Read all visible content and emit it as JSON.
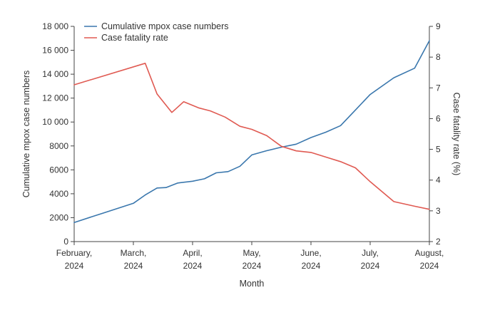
{
  "chart_data": {
    "type": "line",
    "xlabel": "Month",
    "ylabel_left": "Cumulative mpox case numbers",
    "ylabel_right": "Case fatality rate (%)",
    "ylim_left": [
      0,
      18000
    ],
    "ylim_right": [
      2,
      9
    ],
    "left_ticks": [
      "0",
      "2000",
      "4000",
      "6000",
      "8000",
      "10 000",
      "12 000",
      "14 000",
      "16 000",
      "18 000"
    ],
    "right_ticks": [
      "2",
      "3",
      "4",
      "5",
      "6",
      "7",
      "8",
      "9"
    ],
    "x_ticks": [
      {
        "line1": "February,",
        "line2": "2024"
      },
      {
        "line1": "March,",
        "line2": "2024"
      },
      {
        "line1": "April,",
        "line2": "2024"
      },
      {
        "line1": "May,",
        "line2": "2024"
      },
      {
        "line1": "June,",
        "line2": "2024"
      },
      {
        "line1": "July,",
        "line2": "2024"
      },
      {
        "line1": "August,",
        "line2": "2024"
      }
    ],
    "series": [
      {
        "name": "Cumulative mpox case numbers",
        "axis": "left",
        "color": "#3a77ad",
        "x": [
          0,
          0.5,
          1.0,
          1.2,
          1.4,
          1.55,
          1.75,
          2.0,
          2.2,
          2.4,
          2.6,
          2.8,
          3.0,
          3.25,
          3.5,
          3.75,
          4.0,
          4.25,
          4.5,
          4.75,
          5.0,
          5.4,
          5.75,
          6.0
        ],
        "y": [
          1600,
          2400,
          3200,
          3900,
          4480,
          4520,
          4900,
          5050,
          5250,
          5750,
          5850,
          6300,
          7250,
          7600,
          7900,
          8150,
          8700,
          9150,
          9700,
          11000,
          12300,
          13700,
          14500,
          16800
        ]
      },
      {
        "name": "Case fatality rate",
        "axis": "right",
        "color": "#e05a52",
        "x": [
          0,
          1.2,
          1.4,
          1.65,
          1.85,
          2.1,
          2.3,
          2.55,
          2.8,
          3.0,
          3.25,
          3.5,
          3.75,
          4.0,
          4.25,
          4.5,
          4.75,
          5.0,
          5.4,
          5.75,
          6.0
        ],
        "y": [
          7.1,
          7.8,
          6.8,
          6.2,
          6.55,
          6.35,
          6.25,
          6.05,
          5.75,
          5.65,
          5.45,
          5.1,
          4.95,
          4.9,
          4.75,
          4.6,
          4.4,
          3.95,
          3.3,
          3.15,
          3.05
        ]
      }
    ],
    "legend_location": "top-left"
  }
}
